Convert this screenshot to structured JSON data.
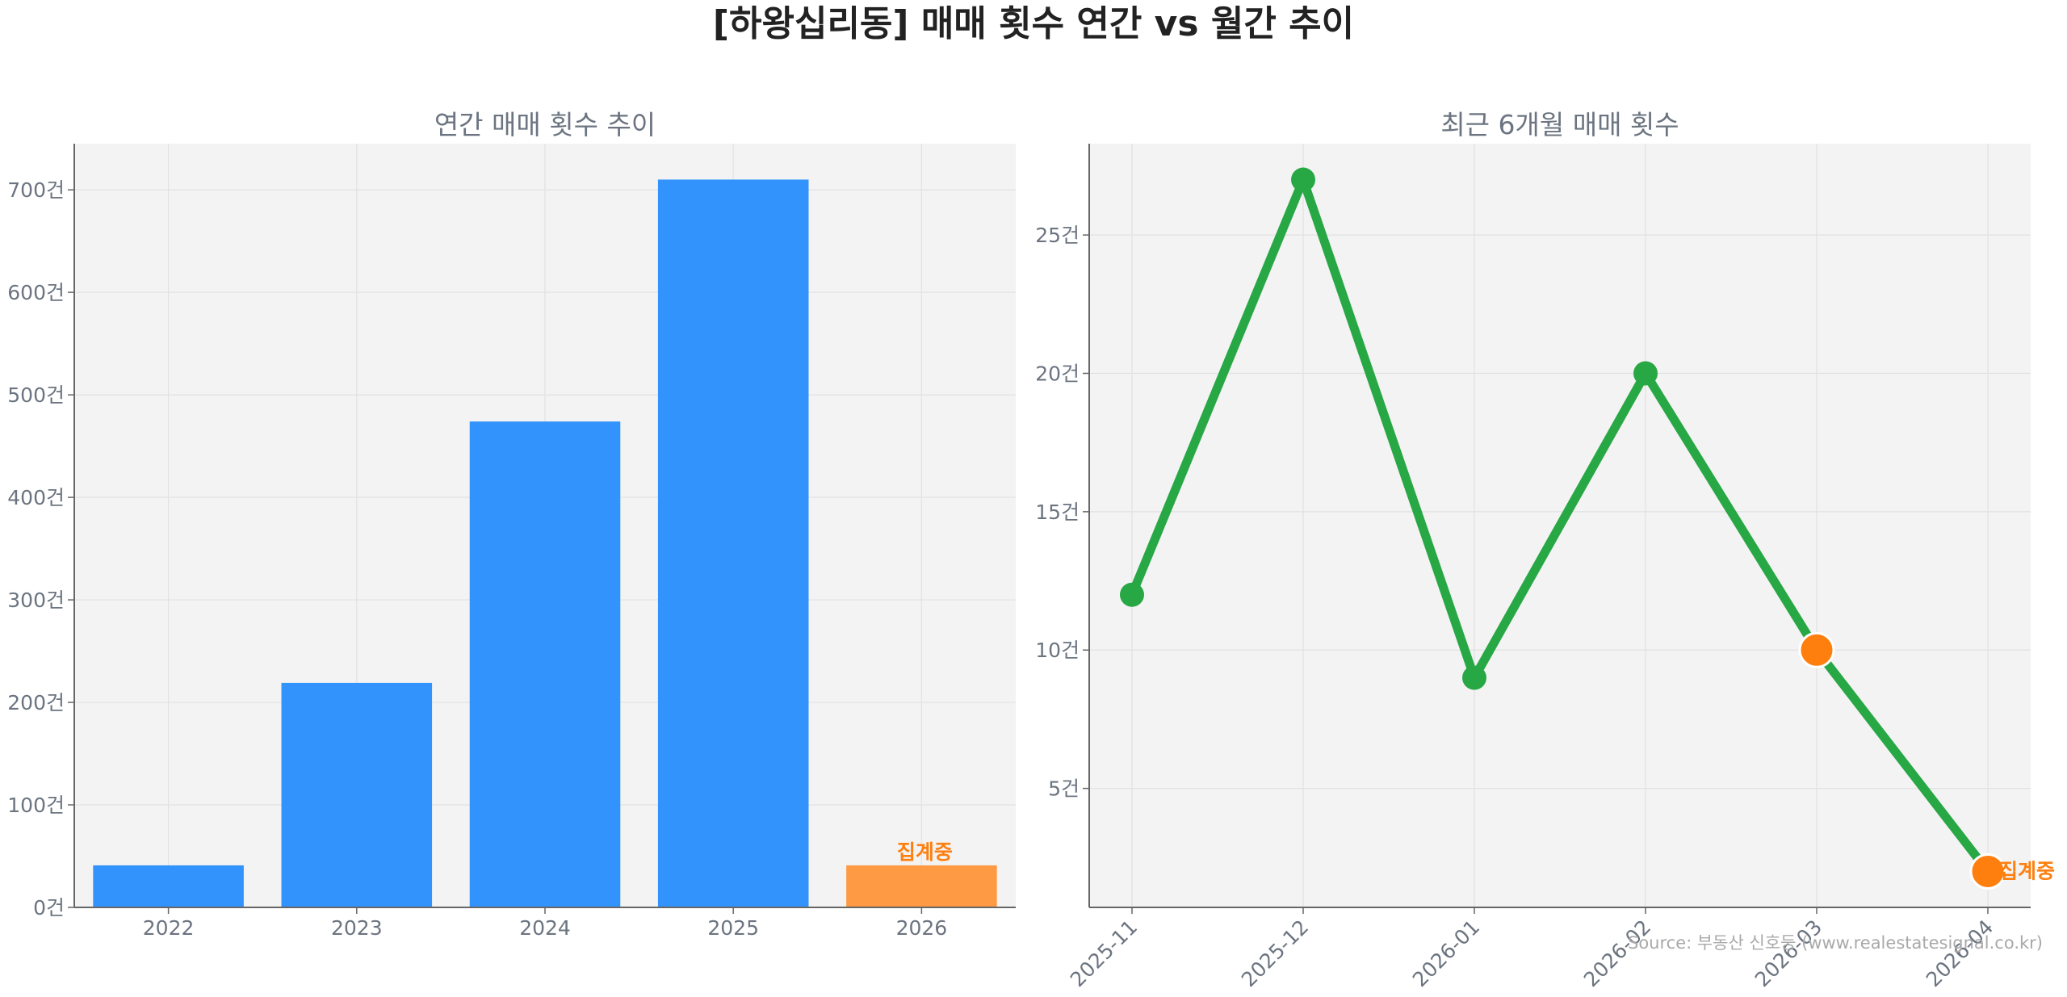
{
  "title": "[하왕십리동] 매매 횟수 연간 vs 월간 추이",
  "source": "Source: 부동산 신호등 (www.realestatesignal.co.kr)",
  "colors": {
    "bar": "#3193fb",
    "bar_partial": "#fd9a43",
    "line": "#28a745",
    "highlight": "#ff7f0e",
    "panel_bg": "#f3f3f3",
    "grid": "#e2e2e2",
    "axis": "#666666"
  },
  "chart_data": [
    {
      "type": "bar",
      "title": "연간 매매 횟수 추이",
      "categories": [
        "2022",
        "2023",
        "2024",
        "2025",
        "2026"
      ],
      "values": [
        41,
        219,
        474,
        710,
        41
      ],
      "highlight_index": 4,
      "annotation": "집계중",
      "ylim": [
        0,
        745
      ],
      "yticks": [
        0,
        100,
        200,
        300,
        400,
        500,
        600,
        700
      ],
      "ytick_suffix": "건",
      "xlabel": "",
      "ylabel": "",
      "grid": true
    },
    {
      "type": "line",
      "title": "최근 6개월 매매 횟수",
      "x": [
        "2025-11",
        "2025-12",
        "2026-01",
        "2026-02",
        "2026-03",
        "2026-04"
      ],
      "values": [
        12,
        27,
        9,
        20,
        10,
        2
      ],
      "highlight_indices": [
        4,
        5
      ],
      "annotation": "집계중",
      "ylim": [
        0.7,
        28.3
      ],
      "yticks": [
        5,
        10,
        15,
        20,
        25
      ],
      "ytick_suffix": "건",
      "xlabel": "",
      "ylabel": "",
      "grid": true
    }
  ]
}
